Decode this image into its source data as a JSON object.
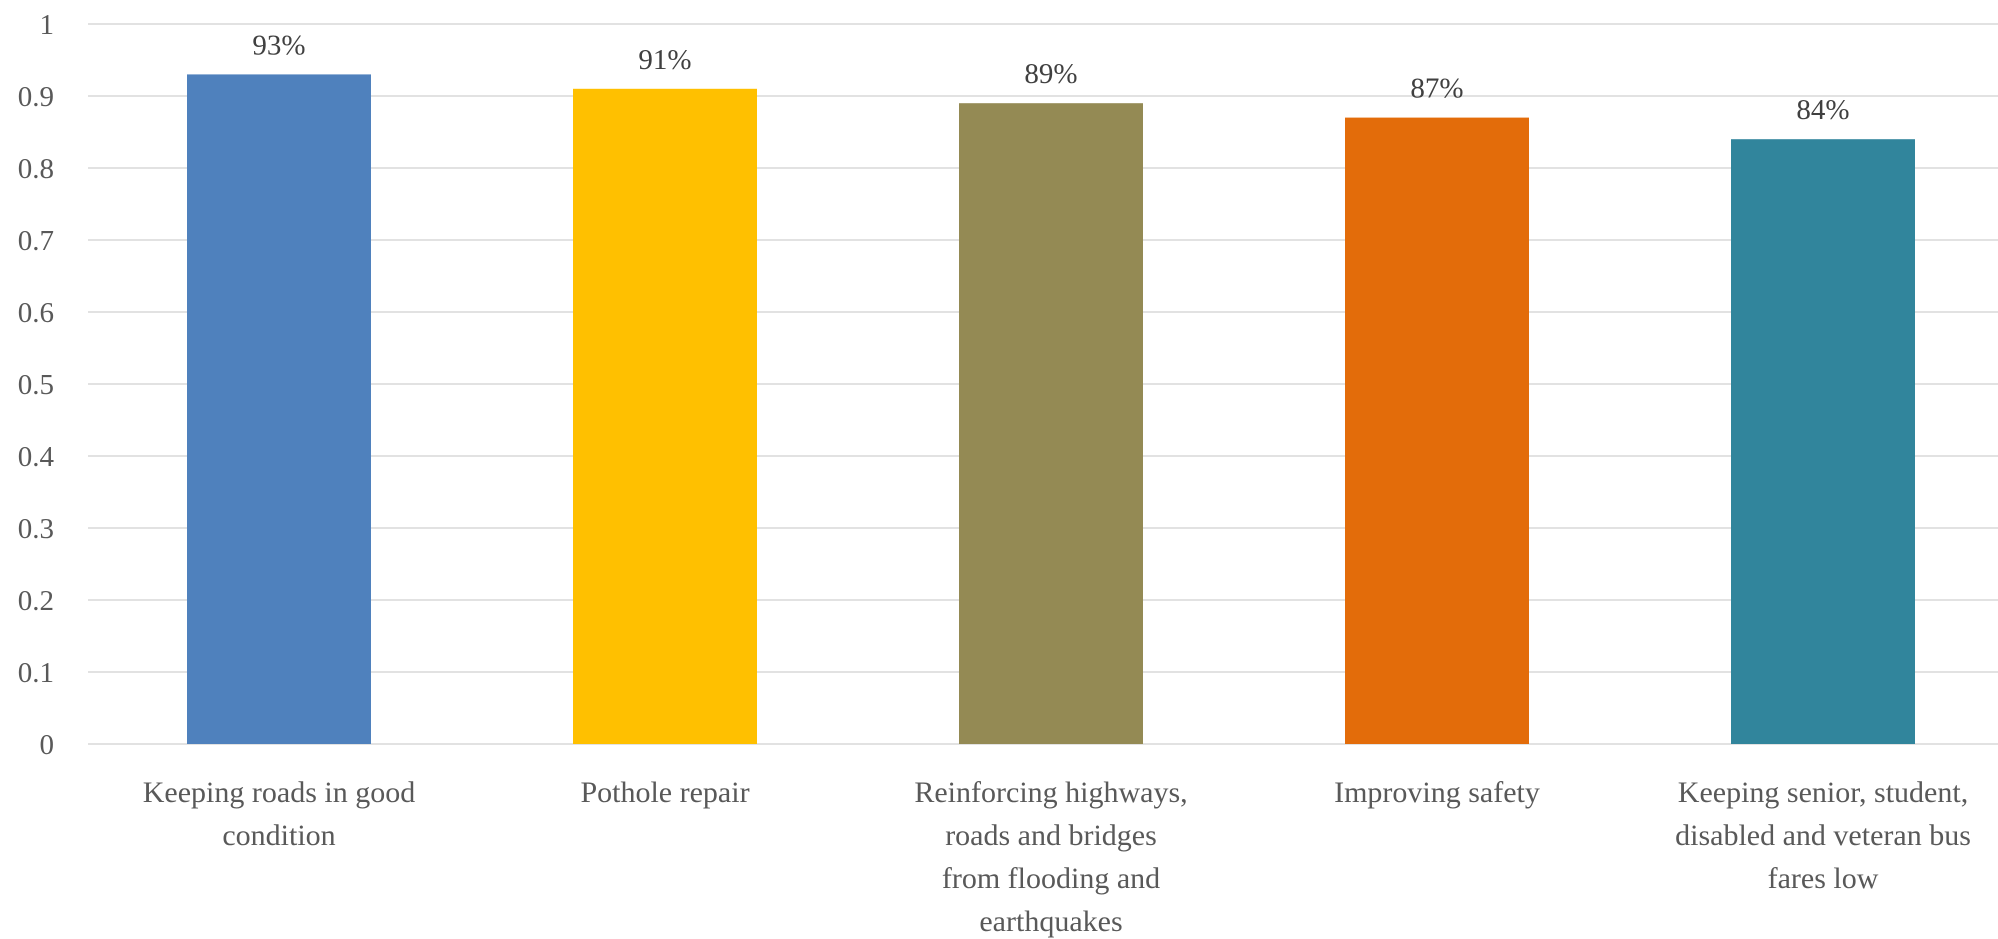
{
  "chart_data": {
    "type": "bar",
    "title": "",
    "xlabel": "",
    "ylabel": "",
    "ylim": [
      0,
      1
    ],
    "yticks": [
      "0",
      "0.1",
      "0.2",
      "0.3",
      "0.4",
      "0.5",
      "0.6",
      "0.7",
      "0.8",
      "0.9",
      "1"
    ],
    "grid": true,
    "legend": "none",
    "categories": [
      "Keeping roads in good condition",
      "Pothole repair",
      "Reinforcing highways, roads and bridges from flooding and earthquakes",
      "Improving safety",
      "Keeping senior, student, disabled and veteran bus fares low"
    ],
    "category_label_lines": [
      [
        "Keeping roads in good",
        "condition"
      ],
      [
        "Pothole repair"
      ],
      [
        "Reinforcing highways,",
        "roads and bridges",
        "from flooding and",
        "earthquakes"
      ],
      [
        "Improving safety"
      ],
      [
        "Keeping senior, student,",
        "disabled and veteran bus",
        "fares low"
      ]
    ],
    "values": [
      0.93,
      0.91,
      0.89,
      0.87,
      0.84
    ],
    "data_labels": [
      "93%",
      "91%",
      "89%",
      "87%",
      "84%"
    ],
    "colors": [
      "#4f81bd",
      "#ffc000",
      "#948a54",
      "#e36c0a",
      "#31859c"
    ]
  }
}
